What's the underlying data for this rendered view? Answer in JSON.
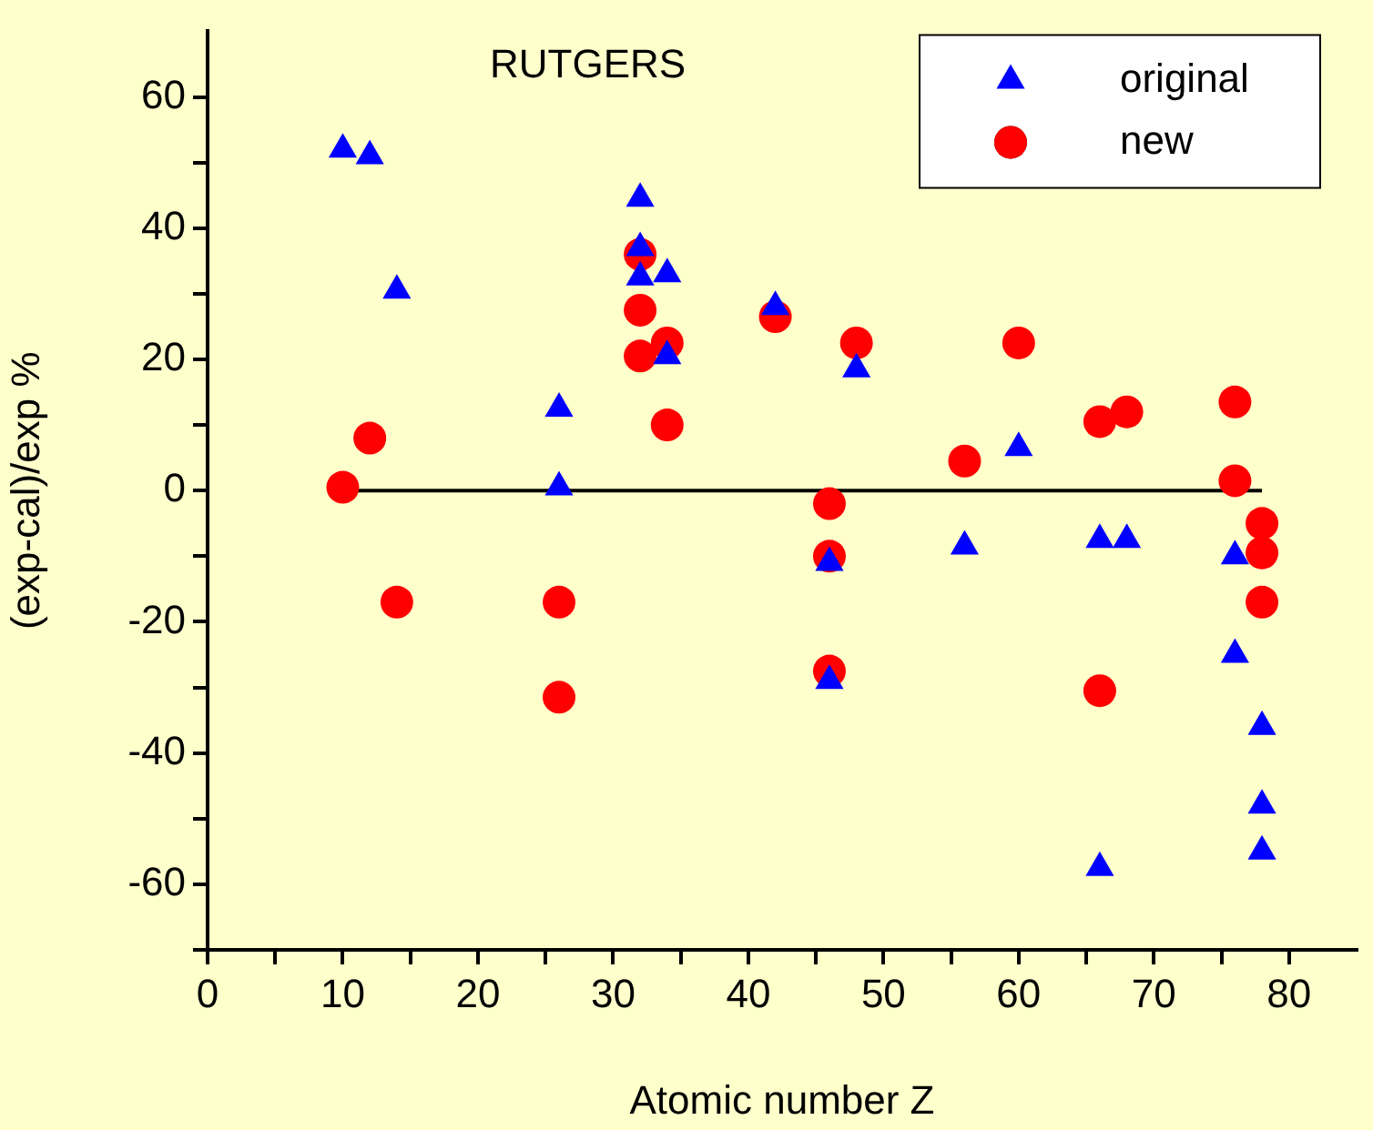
{
  "chart_data": {
    "type": "scatter",
    "xlabel": "Atomic number Z",
    "ylabel": "(exp-cal)/exp %",
    "annotations": [
      "RUTGERS"
    ],
    "xlim": [
      0,
      85
    ],
    "ylim": [
      -70,
      70
    ],
    "xticks": [
      0,
      {
        "value": 5,
        "label": null
      },
      10,
      {
        "value": 15,
        "label": null
      },
      20,
      {
        "value": 25,
        "label": null
      },
      30,
      {
        "value": 35,
        "label": null
      },
      40,
      {
        "value": 45,
        "label": null
      },
      50,
      {
        "value": 55,
        "label": null
      },
      60,
      {
        "value": 65,
        "label": null
      },
      70,
      {
        "value": 75,
        "label": null
      },
      80
    ],
    "yticks": [
      {
        "value": -70,
        "label": null
      },
      -60,
      {
        "value": -50,
        "label": null
      },
      -40,
      {
        "value": -30,
        "label": null
      },
      -20,
      {
        "value": -10,
        "label": null
      },
      0,
      {
        "value": 10,
        "label": null
      },
      20,
      {
        "value": 30,
        "label": null
      },
      40,
      {
        "value": 50,
        "label": null
      },
      60
    ],
    "grid": false,
    "legend": "top right",
    "series": [
      {
        "name": "original",
        "color": "#0000ff",
        "marker": "triangle",
        "x": [
          10,
          12,
          14,
          26,
          26,
          32,
          32,
          32,
          34,
          34,
          42,
          46,
          46,
          48,
          56,
          60,
          66,
          66,
          68,
          76,
          76,
          78,
          78,
          78
        ],
        "values": [
          52,
          51,
          30.5,
          12.5,
          0.5,
          44.5,
          37,
          32.5,
          33,
          20.5,
          28,
          -11,
          -29,
          18.5,
          -8.5,
          6.5,
          -7.5,
          -57.5,
          -7.5,
          -10,
          -25,
          -36,
          -48,
          -55
        ]
      },
      {
        "name": "new",
        "color": "#ff0000",
        "marker": "circle",
        "x": [
          10,
          12,
          14,
          26,
          26,
          32,
          32,
          32,
          34,
          34,
          42,
          46,
          46,
          46,
          48,
          56,
          60,
          66,
          66,
          68,
          76,
          76,
          78,
          78,
          78
        ],
        "values": [
          0.5,
          8,
          -17,
          -17,
          -31.5,
          36,
          27.5,
          20.5,
          22.5,
          10,
          26.5,
          -2,
          -10,
          -27.5,
          22.5,
          4.5,
          22.5,
          10.5,
          -30.5,
          12,
          13.5,
          1.5,
          -5,
          -9.5,
          -17
        ]
      },
      {
        "type": "line",
        "color": "#000000",
        "marker": "none",
        "x": [
          10,
          78
        ],
        "values": [
          0,
          0
        ]
      }
    ]
  }
}
